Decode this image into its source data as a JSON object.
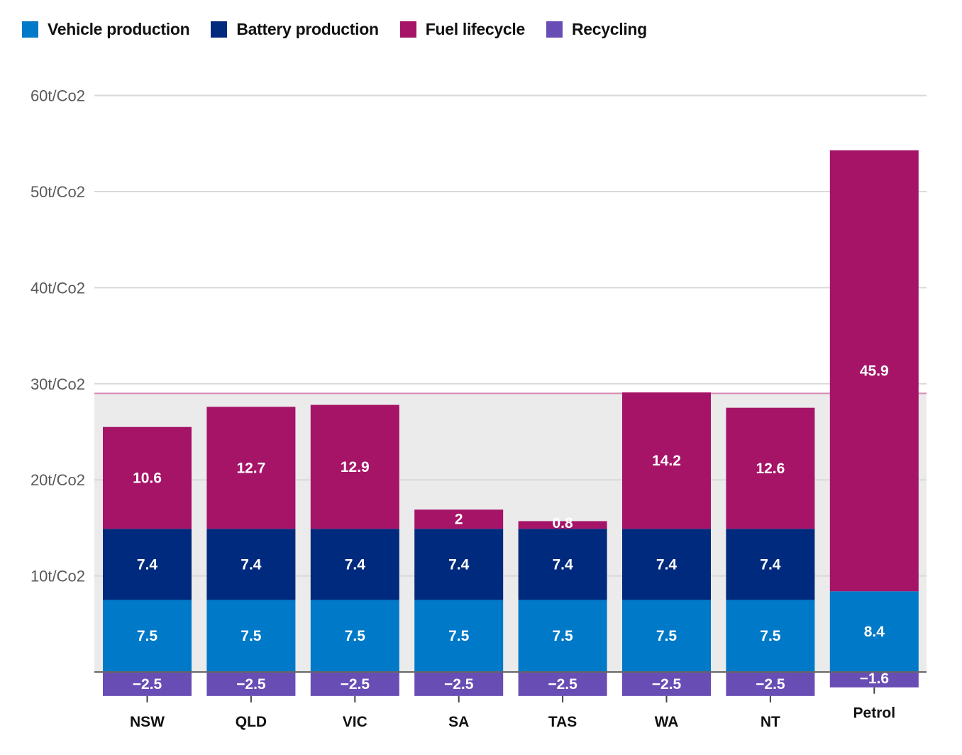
{
  "chart_data": {
    "type": "bar",
    "stacked": true,
    "title": "",
    "xlabel": "",
    "ylabel": "",
    "ylim": [
      -2.5,
      60
    ],
    "yticks": [
      10,
      20,
      30,
      40,
      50,
      60
    ],
    "ytick_labels": [
      "10t/Co2",
      "20t/Co2",
      "30t/Co2",
      "40t/Co2",
      "50t/Co2",
      "60t/Co2"
    ],
    "grid": true,
    "legend_position": "top-left",
    "categories": [
      "NSW",
      "QLD",
      "VIC",
      "SA",
      "TAS",
      "WA",
      "NT",
      "Petrol"
    ],
    "series": [
      {
        "name": "Vehicle production",
        "color": "#0079c8",
        "values": [
          7.5,
          7.5,
          7.5,
          7.5,
          7.5,
          7.5,
          7.5,
          8.4
        ],
        "labels": [
          "7.5",
          "7.5",
          "7.5",
          "7.5",
          "7.5",
          "7.5",
          "7.5",
          "8.4"
        ]
      },
      {
        "name": "Battery production",
        "color": "#002a7d",
        "values": [
          7.4,
          7.4,
          7.4,
          7.4,
          7.4,
          7.4,
          7.4,
          0
        ],
        "labels": [
          "7.4",
          "7.4",
          "7.4",
          "7.4",
          "7.4",
          "7.4",
          "7.4",
          ""
        ]
      },
      {
        "name": "Fuel lifecycle",
        "color": "#a51467",
        "values": [
          10.6,
          12.7,
          12.9,
          2,
          0.8,
          14.2,
          12.6,
          45.9
        ],
        "labels": [
          "10.6",
          "12.7",
          "12.9",
          "2",
          "0.8",
          "14.2",
          "12.6",
          "45.9"
        ]
      },
      {
        "name": "Recycling",
        "color": "#684db4",
        "values": [
          -2.5,
          -2.5,
          -2.5,
          -2.5,
          -2.5,
          -2.5,
          -2.5,
          -1.6
        ],
        "labels": [
          "−2.5",
          "−2.5",
          "−2.5",
          "−2.5",
          "−2.5",
          "−2.5",
          "−2.5",
          "−1.6"
        ]
      }
    ],
    "annotations": [
      {
        "type": "reference-band",
        "from": 0,
        "to": 29,
        "fill": "#ebebeb",
        "line_color": "#d68bb4",
        "description": "shaded band up to reference line at ~29t"
      }
    ]
  }
}
